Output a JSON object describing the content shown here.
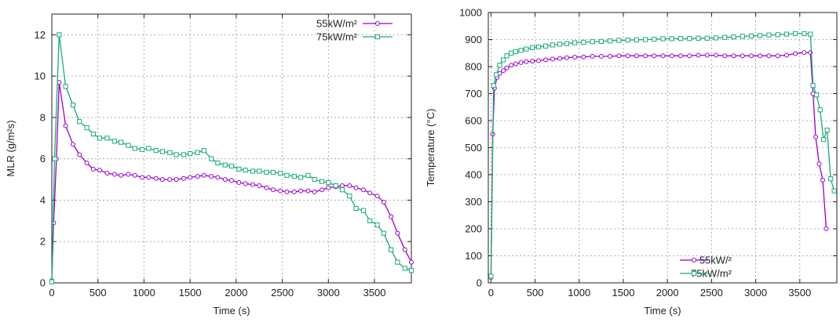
{
  "chart_data": [
    {
      "type": "line",
      "title": "",
      "xlabel": "Time (s)",
      "ylabel": "MLR (g/m²s)",
      "xlim": [
        0,
        3900
      ],
      "ylim": [
        0,
        13
      ],
      "xticks": [
        "0",
        "500",
        "1000",
        "1500",
        "2000",
        "2500",
        "3000",
        "3500"
      ],
      "yticks": [
        "0",
        "2",
        "4",
        "6",
        "8",
        "10",
        "12"
      ],
      "grid": true,
      "legend": "top-right",
      "series": [
        {
          "name": "55kW/m²",
          "color": "#9900cc",
          "marker": "circle",
          "x": [
            0,
            20,
            50,
            80,
            150,
            230,
            300,
            380,
            450,
            520,
            600,
            680,
            750,
            830,
            900,
            980,
            1050,
            1130,
            1200,
            1280,
            1350,
            1430,
            1500,
            1580,
            1650,
            1730,
            1800,
            1880,
            1950,
            2030,
            2100,
            2180,
            2250,
            2330,
            2400,
            2480,
            2550,
            2630,
            2700,
            2780,
            2850,
            2930,
            3000,
            3080,
            3150,
            3230,
            3300,
            3380,
            3450,
            3530,
            3600,
            3680,
            3750,
            3830,
            3900
          ],
          "y": [
            0.1,
            2.9,
            6.0,
            9.7,
            7.6,
            6.7,
            6.2,
            5.8,
            5.5,
            5.45,
            5.3,
            5.25,
            5.2,
            5.25,
            5.2,
            5.1,
            5.1,
            5.05,
            5.0,
            5.0,
            5.0,
            5.05,
            5.1,
            5.15,
            5.2,
            5.15,
            5.1,
            5.0,
            4.95,
            4.85,
            4.8,
            4.75,
            4.7,
            4.6,
            4.5,
            4.45,
            4.4,
            4.4,
            4.45,
            4.45,
            4.4,
            4.5,
            4.6,
            4.65,
            4.7,
            4.7,
            4.6,
            4.5,
            4.35,
            4.2,
            3.9,
            3.2,
            2.4,
            1.6,
            1.0
          ]
        },
        {
          "name": "75kW/m²",
          "color": "#1aaa7a",
          "marker": "square",
          "x": [
            0,
            30,
            80,
            150,
            230,
            300,
            380,
            450,
            520,
            600,
            680,
            750,
            830,
            900,
            980,
            1050,
            1130,
            1200,
            1280,
            1350,
            1430,
            1500,
            1580,
            1650,
            1730,
            1800,
            1880,
            1950,
            2030,
            2100,
            2180,
            2250,
            2330,
            2400,
            2480,
            2550,
            2630,
            2700,
            2780,
            2850,
            2930,
            3000,
            3080,
            3150,
            3230,
            3300,
            3380,
            3450,
            3530,
            3600,
            3680,
            3750,
            3830,
            3900
          ],
          "y": [
            0.05,
            6.0,
            12.0,
            9.5,
            8.6,
            7.8,
            7.5,
            7.2,
            7.0,
            7.0,
            6.85,
            6.8,
            6.65,
            6.5,
            6.45,
            6.5,
            6.4,
            6.35,
            6.3,
            6.2,
            6.2,
            6.25,
            6.3,
            6.4,
            6.0,
            5.8,
            5.7,
            5.65,
            5.5,
            5.45,
            5.4,
            5.4,
            5.35,
            5.35,
            5.3,
            5.2,
            5.15,
            5.1,
            5.2,
            5.0,
            4.9,
            4.85,
            4.7,
            4.5,
            4.2,
            3.6,
            3.5,
            3.0,
            2.8,
            2.4,
            1.6,
            1.0,
            0.7,
            0.6
          ]
        }
      ]
    },
    {
      "type": "line",
      "title": "",
      "xlabel": "Time (s)",
      "ylabel": "Temperature (°C)",
      "xlim": [
        -30,
        3920
      ],
      "ylim": [
        0,
        1000
      ],
      "xticks": [
        "0",
        "500",
        "1000",
        "1500",
        "2000",
        "2500",
        "3000",
        "3500"
      ],
      "yticks": [
        "0",
        "100",
        "200",
        "300",
        "400",
        "500",
        "600",
        "700",
        "800",
        "900",
        "1000"
      ],
      "grid": true,
      "legend": "bottom-center",
      "series": [
        {
          "name": "55kW/²",
          "color": "#9900cc",
          "marker": "circle",
          "x": [
            0,
            20,
            40,
            70,
            100,
            140,
            180,
            230,
            280,
            340,
            400,
            470,
            540,
            620,
            700,
            780,
            860,
            950,
            1050,
            1150,
            1250,
            1350,
            1450,
            1550,
            1650,
            1750,
            1850,
            1950,
            2050,
            2150,
            2250,
            2350,
            2450,
            2550,
            2650,
            2750,
            2850,
            2950,
            3050,
            3150,
            3250,
            3350,
            3450,
            3550,
            3620,
            3650,
            3680,
            3720,
            3760,
            3800
          ],
          "y": [
            20,
            550,
            720,
            760,
            775,
            785,
            795,
            805,
            810,
            815,
            818,
            820,
            822,
            825,
            828,
            830,
            833,
            835,
            836,
            838,
            838,
            838,
            840,
            840,
            840,
            840,
            840,
            840,
            840,
            840,
            840,
            842,
            842,
            842,
            840,
            840,
            840,
            840,
            840,
            840,
            840,
            842,
            848,
            852,
            852,
            700,
            540,
            440,
            380,
            200
          ]
        },
        {
          "name": "75kW/m²",
          "color": "#1aaa7a",
          "marker": "square",
          "x": [
            0,
            30,
            60,
            100,
            140,
            180,
            230,
            280,
            340,
            400,
            470,
            540,
            620,
            700,
            780,
            860,
            950,
            1050,
            1150,
            1250,
            1350,
            1450,
            1550,
            1650,
            1750,
            1850,
            1950,
            2050,
            2150,
            2250,
            2350,
            2450,
            2550,
            2650,
            2750,
            2850,
            2950,
            3050,
            3150,
            3250,
            3350,
            3450,
            3550,
            3620,
            3650,
            3690,
            3730,
            3770,
            3810,
            3850,
            3890
          ],
          "y": [
            25,
            730,
            770,
            805,
            825,
            840,
            850,
            855,
            860,
            865,
            870,
            873,
            876,
            880,
            883,
            885,
            888,
            890,
            892,
            893,
            895,
            897,
            898,
            899,
            900,
            901,
            903,
            903,
            904,
            904,
            905,
            905,
            906,
            908,
            910,
            912,
            913,
            915,
            917,
            918,
            920,
            922,
            922,
            920,
            730,
            695,
            640,
            530,
            565,
            385,
            340
          ]
        }
      ]
    }
  ]
}
